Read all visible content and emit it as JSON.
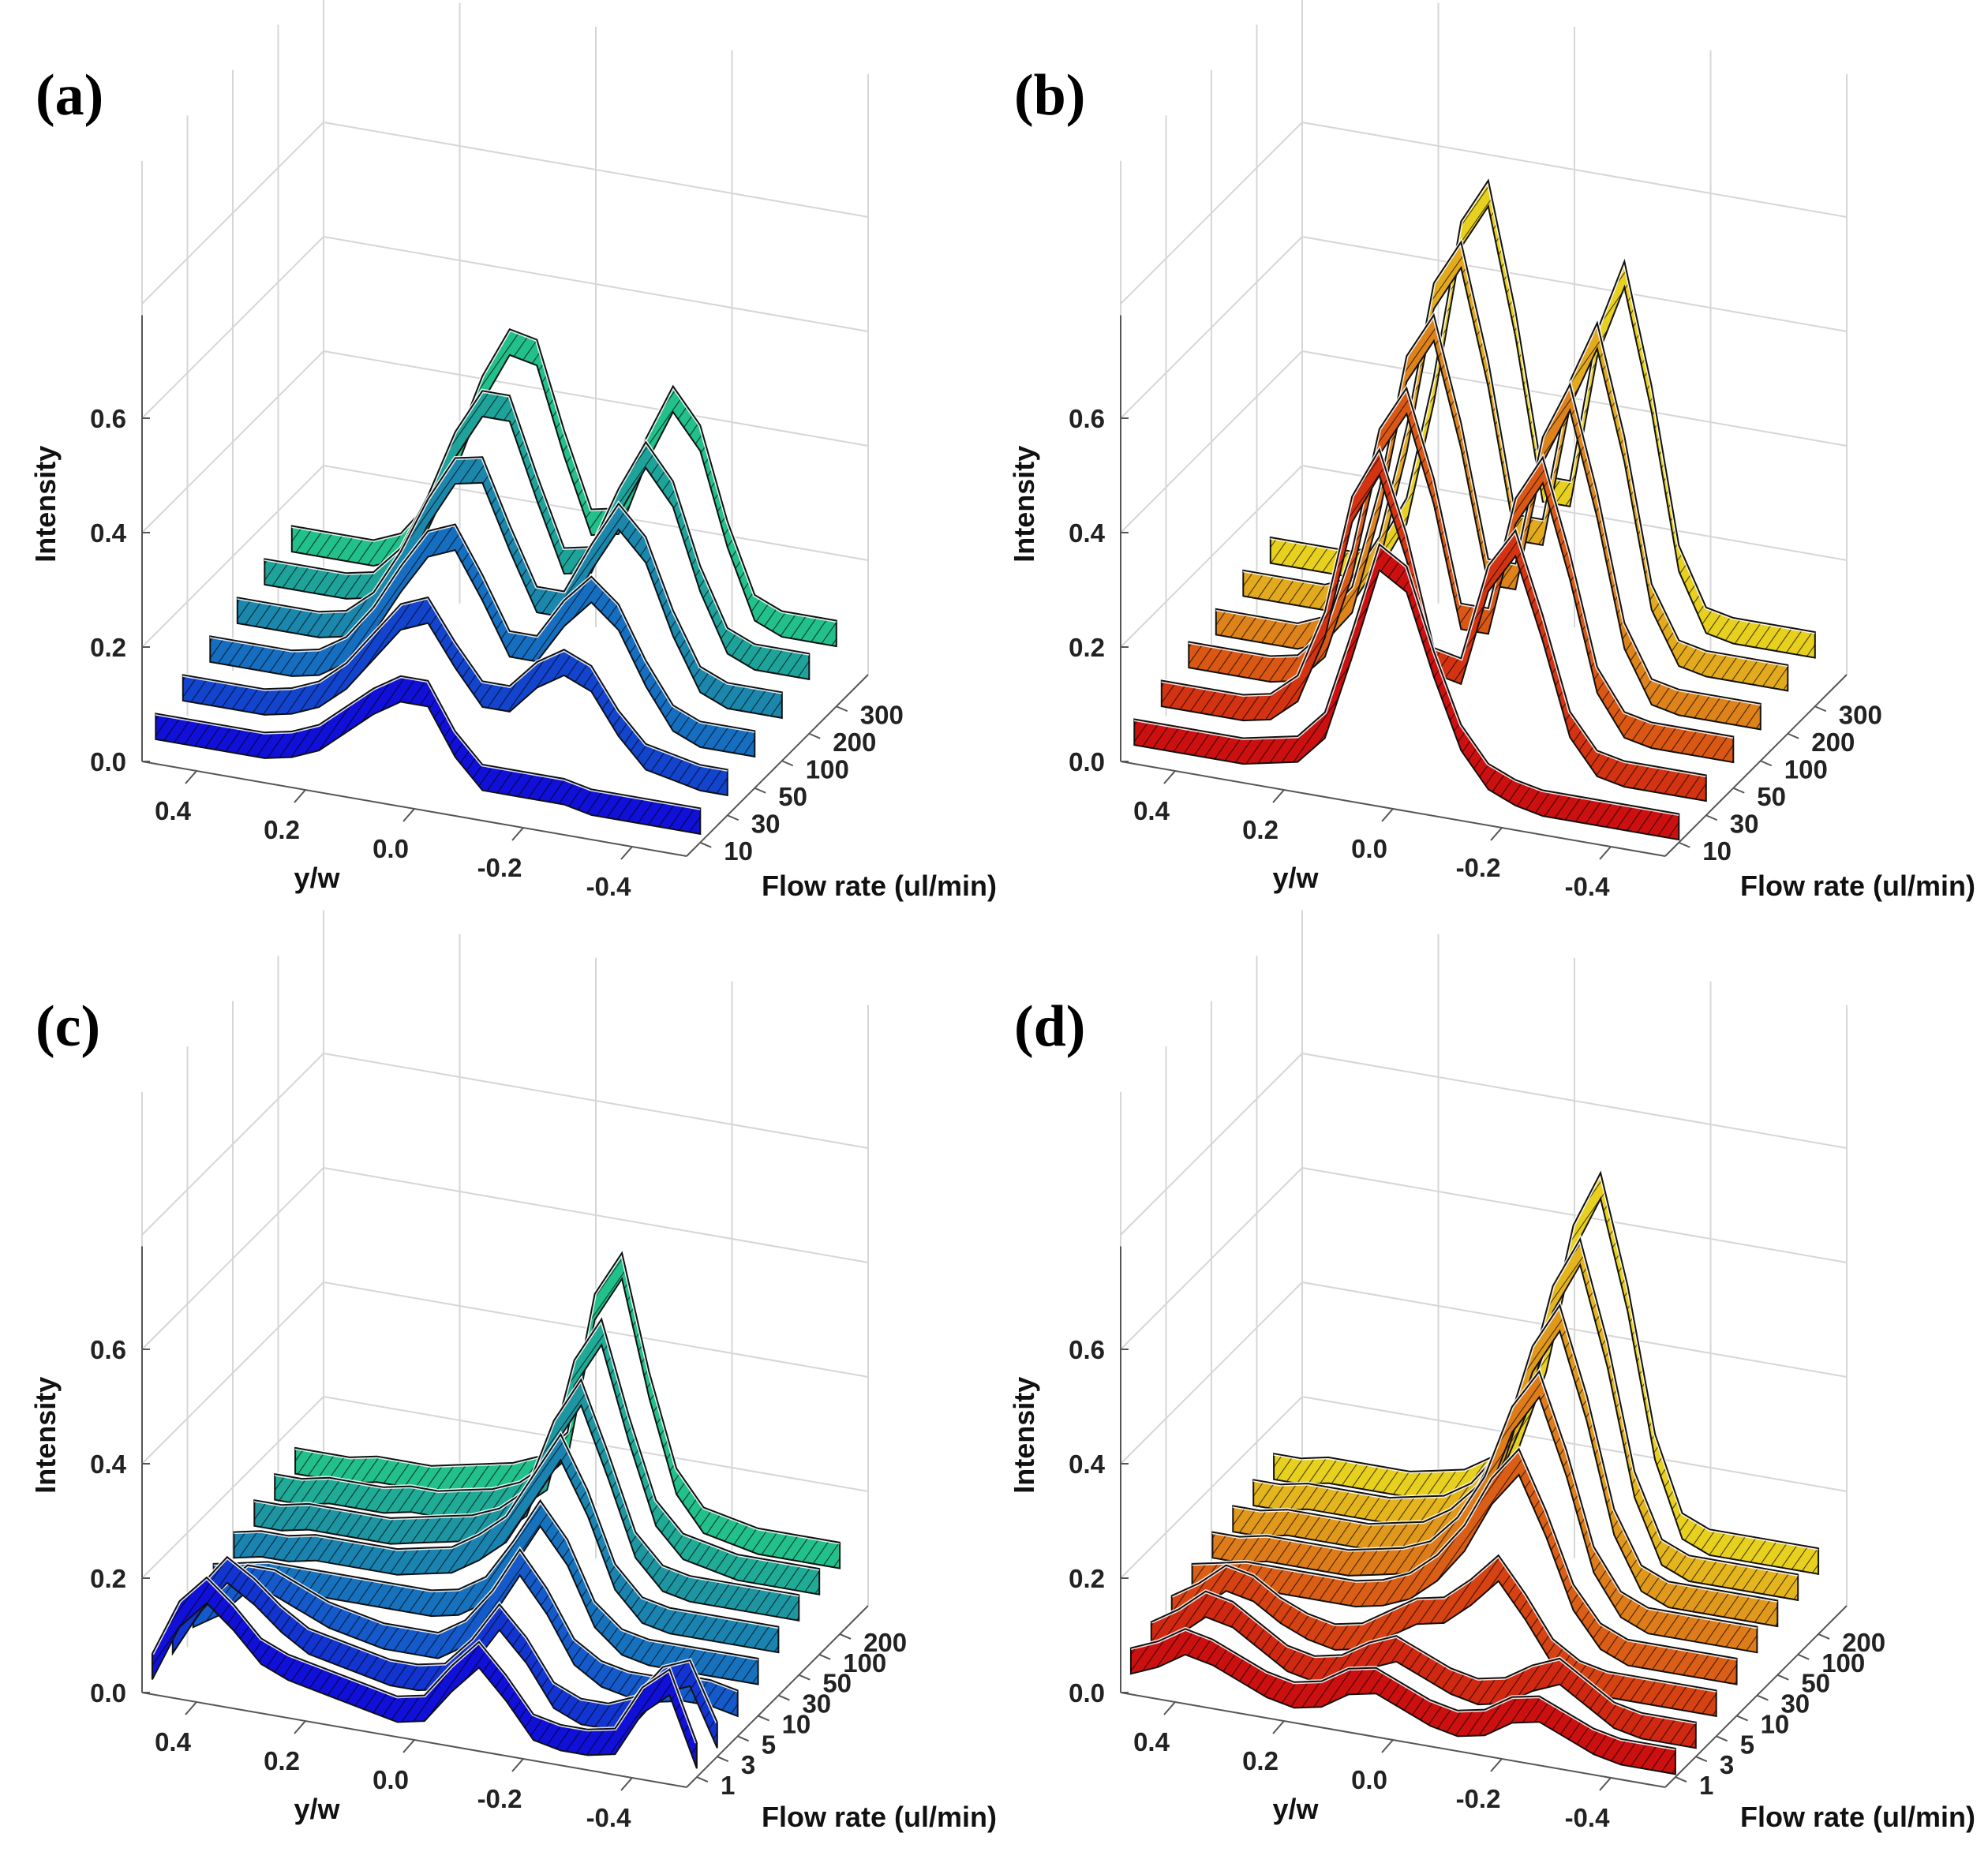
{
  "figure": {
    "panels": [
      "(a)",
      "(b)",
      "(c)",
      "(d)"
    ]
  },
  "chart_data": [
    {
      "panel": "(a)",
      "type": "ribbon3d",
      "colormap": "winter",
      "colors": [
        "#1010d8",
        "#1566c8",
        "#1c8fa5",
        "#22c08a"
      ],
      "zlabel": "Intensity",
      "xlabel": "y/w",
      "ylabel": "Flow rate (ul/min)",
      "z_ticks": [
        "0.0",
        "0.2",
        "0.4",
        "0.6"
      ],
      "x_ticks": [
        "0.4",
        "0.2",
        "0.0",
        "-0.2",
        "-0.4"
      ],
      "y_ticks": [
        "10",
        "30",
        "50",
        "100",
        "200",
        "300"
      ],
      "zlim": [
        0,
        0.8
      ],
      "xlim": [
        0.5,
        -0.5
      ],
      "x": [
        0.5,
        0.45,
        0.4,
        0.35,
        0.3,
        0.25,
        0.2,
        0.15,
        0.1,
        0.05,
        0.0,
        -0.05,
        -0.1,
        -0.15,
        -0.2,
        -0.25,
        -0.3,
        -0.35,
        -0.4,
        -0.45,
        -0.5
      ],
      "series": [
        {
          "name": "10",
          "values": [
            0.06,
            0.06,
            0.06,
            0.06,
            0.06,
            0.07,
            0.09,
            0.13,
            0.17,
            0.2,
            0.2,
            0.12,
            0.07,
            0.07,
            0.07,
            0.07,
            0.06,
            0.06,
            0.06,
            0.06,
            0.06
          ]
        },
        {
          "name": "30",
          "values": [
            0.08,
            0.08,
            0.08,
            0.08,
            0.09,
            0.11,
            0.15,
            0.21,
            0.27,
            0.29,
            0.22,
            0.16,
            0.16,
            0.21,
            0.24,
            0.22,
            0.15,
            0.1,
            0.09,
            0.08,
            0.08
          ]
        },
        {
          "name": "50",
          "values": [
            0.1,
            0.1,
            0.1,
            0.1,
            0.11,
            0.14,
            0.2,
            0.28,
            0.35,
            0.37,
            0.29,
            0.2,
            0.2,
            0.27,
            0.32,
            0.28,
            0.19,
            0.12,
            0.1,
            0.1,
            0.1
          ]
        },
        {
          "name": "100",
          "values": [
            0.12,
            0.12,
            0.12,
            0.12,
            0.13,
            0.17,
            0.25,
            0.35,
            0.43,
            0.44,
            0.33,
            0.23,
            0.23,
            0.32,
            0.4,
            0.35,
            0.23,
            0.14,
            0.12,
            0.12,
            0.12
          ]
        },
        {
          "name": "200",
          "values": [
            0.14,
            0.14,
            0.14,
            0.14,
            0.15,
            0.2,
            0.3,
            0.42,
            0.5,
            0.5,
            0.37,
            0.25,
            0.26,
            0.37,
            0.46,
            0.4,
            0.26,
            0.16,
            0.14,
            0.14,
            0.14
          ]
        },
        {
          "name": "300",
          "values": [
            0.15,
            0.15,
            0.15,
            0.15,
            0.17,
            0.23,
            0.34,
            0.47,
            0.56,
            0.55,
            0.4,
            0.27,
            0.28,
            0.41,
            0.51,
            0.45,
            0.29,
            0.17,
            0.15,
            0.15,
            0.15
          ]
        }
      ]
    },
    {
      "panel": "(b)",
      "type": "ribbon3d",
      "colormap": "autumn",
      "colors": [
        "#cc1010",
        "#d84a12",
        "#e0901c",
        "#e8d01e"
      ],
      "zlabel": "Intensity",
      "xlabel": "y/w",
      "ylabel": "Flow rate (ul/min)",
      "z_ticks": [
        "0.0",
        "0.2",
        "0.4",
        "0.6"
      ],
      "x_ticks": [
        "0.4",
        "0.2",
        "0.0",
        "-0.2",
        "-0.4"
      ],
      "y_ticks": [
        "10",
        "30",
        "50",
        "100",
        "200",
        "300"
      ],
      "zlim": [
        0,
        0.8
      ],
      "xlim": [
        0.5,
        -0.5
      ],
      "x": [
        0.5,
        0.45,
        0.4,
        0.35,
        0.3,
        0.25,
        0.2,
        0.15,
        0.1,
        0.05,
        0.0,
        -0.05,
        -0.1,
        -0.15,
        -0.2,
        -0.25,
        -0.3,
        -0.35,
        -0.4,
        -0.45,
        -0.5
      ],
      "series": [
        {
          "name": "10",
          "values": [
            0.05,
            0.05,
            0.05,
            0.05,
            0.05,
            0.06,
            0.07,
            0.12,
            0.27,
            0.43,
            0.4,
            0.26,
            0.14,
            0.08,
            0.06,
            0.05,
            0.05,
            0.05,
            0.05,
            0.05,
            0.05
          ]
        },
        {
          "name": "30",
          "values": [
            0.07,
            0.07,
            0.07,
            0.07,
            0.08,
            0.12,
            0.24,
            0.45,
            0.54,
            0.4,
            0.21,
            0.2,
            0.37,
            0.44,
            0.3,
            0.14,
            0.08,
            0.07,
            0.07,
            0.07,
            0.07
          ]
        },
        {
          "name": "50",
          "values": [
            0.09,
            0.09,
            0.09,
            0.09,
            0.1,
            0.15,
            0.3,
            0.52,
            0.6,
            0.45,
            0.24,
            0.24,
            0.44,
            0.52,
            0.36,
            0.17,
            0.1,
            0.09,
            0.09,
            0.09,
            0.09
          ]
        },
        {
          "name": "100",
          "values": [
            0.1,
            0.1,
            0.1,
            0.1,
            0.12,
            0.18,
            0.36,
            0.6,
            0.68,
            0.5,
            0.27,
            0.27,
            0.5,
            0.6,
            0.42,
            0.2,
            0.11,
            0.1,
            0.1,
            0.1,
            0.1
          ]
        },
        {
          "name": "200",
          "values": [
            0.12,
            0.12,
            0.12,
            0.12,
            0.14,
            0.22,
            0.42,
            0.68,
            0.76,
            0.56,
            0.3,
            0.3,
            0.55,
            0.66,
            0.47,
            0.22,
            0.13,
            0.12,
            0.12,
            0.12,
            0.12
          ]
        },
        {
          "name": "300",
          "values": [
            0.13,
            0.13,
            0.13,
            0.13,
            0.15,
            0.24,
            0.46,
            0.74,
            0.82,
            0.6,
            0.32,
            0.32,
            0.59,
            0.72,
            0.51,
            0.24,
            0.14,
            0.13,
            0.13,
            0.13,
            0.13
          ]
        }
      ]
    },
    {
      "panel": "(c)",
      "type": "ribbon3d",
      "colormap": "winter",
      "colors": [
        "#1010d8",
        "#1566c8",
        "#1c8fa5",
        "#22c08a"
      ],
      "zlabel": "Intensity",
      "xlabel": "y/w",
      "ylabel": "Flow rate (ul/min)",
      "z_ticks": [
        "0.0",
        "0.2",
        "0.4",
        "0.6"
      ],
      "x_ticks": [
        "0.4",
        "0.2",
        "0.0",
        "-0.2",
        "-0.4"
      ],
      "y_ticks": [
        "1",
        "3",
        "5",
        "10",
        "30",
        "50",
        "100",
        "200"
      ],
      "zlim": [
        0,
        0.8
      ],
      "xlim": [
        0.5,
        -0.5
      ],
      "x": [
        0.5,
        0.45,
        0.4,
        0.35,
        0.3,
        0.25,
        0.2,
        0.15,
        0.1,
        0.05,
        0.0,
        -0.05,
        -0.1,
        -0.15,
        -0.2,
        -0.25,
        -0.3,
        -0.35,
        -0.4,
        -0.45,
        -0.5
      ],
      "series": [
        {
          "name": "1",
          "values": [
            0.05,
            0.15,
            0.2,
            0.16,
            0.11,
            0.09,
            0.08,
            0.07,
            0.06,
            0.05,
            0.06,
            0.12,
            0.17,
            0.12,
            0.06,
            0.05,
            0.05,
            0.06,
            0.14,
            0.18,
            0.06
          ]
        },
        {
          "name": "3",
          "values": [
            0.06,
            0.14,
            0.2,
            0.17,
            0.13,
            0.1,
            0.09,
            0.08,
            0.07,
            0.07,
            0.08,
            0.13,
            0.2,
            0.15,
            0.08,
            0.06,
            0.06,
            0.08,
            0.14,
            0.16,
            0.06
          ]
        },
        {
          "name": "5",
          "values": [
            0.07,
            0.1,
            0.15,
            0.15,
            0.13,
            0.11,
            0.1,
            0.09,
            0.09,
            0.09,
            0.12,
            0.18,
            0.26,
            0.2,
            0.12,
            0.09,
            0.08,
            0.08,
            0.09,
            0.09,
            0.08
          ]
        },
        {
          "name": "10",
          "values": [
            0.1,
            0.11,
            0.12,
            0.12,
            0.12,
            0.12,
            0.12,
            0.12,
            0.12,
            0.13,
            0.16,
            0.23,
            0.31,
            0.25,
            0.15,
            0.11,
            0.1,
            0.1,
            0.1,
            0.1,
            0.1
          ]
        },
        {
          "name": "30",
          "values": [
            0.12,
            0.13,
            0.13,
            0.14,
            0.14,
            0.14,
            0.14,
            0.15,
            0.16,
            0.19,
            0.23,
            0.31,
            0.39,
            0.3,
            0.18,
            0.13,
            0.12,
            0.12,
            0.12,
            0.12,
            0.12
          ]
        },
        {
          "name": "50",
          "values": [
            0.14,
            0.14,
            0.15,
            0.15,
            0.15,
            0.15,
            0.16,
            0.17,
            0.18,
            0.2,
            0.24,
            0.37,
            0.45,
            0.33,
            0.2,
            0.15,
            0.14,
            0.14,
            0.14,
            0.14,
            0.14
          ]
        },
        {
          "name": "100",
          "values": [
            0.15,
            0.15,
            0.16,
            0.16,
            0.16,
            0.17,
            0.17,
            0.18,
            0.19,
            0.21,
            0.25,
            0.44,
            0.52,
            0.36,
            0.22,
            0.17,
            0.16,
            0.15,
            0.15,
            0.15,
            0.15
          ]
        },
        {
          "name": "200",
          "values": [
            0.16,
            0.16,
            0.16,
            0.17,
            0.17,
            0.17,
            0.18,
            0.19,
            0.2,
            0.22,
            0.27,
            0.52,
            0.6,
            0.4,
            0.24,
            0.18,
            0.17,
            0.16,
            0.16,
            0.16,
            0.16
          ]
        }
      ]
    },
    {
      "panel": "(d)",
      "type": "ribbon3d",
      "colormap": "autumn",
      "colors": [
        "#cc1010",
        "#d84a12",
        "#e0901c",
        "#e8d01e"
      ],
      "zlabel": "Intensity",
      "xlabel": "y/w",
      "ylabel": "Flow rate (ul/min)",
      "z_ticks": [
        "0.0",
        "0.2",
        "0.4",
        "0.6"
      ],
      "x_ticks": [
        "0.4",
        "0.2",
        "0.0",
        "-0.2",
        "-0.4"
      ],
      "y_ticks": [
        "1",
        "3",
        "5",
        "10",
        "30",
        "50",
        "100",
        "200"
      ],
      "zlim": [
        0,
        0.8
      ],
      "xlim": [
        0.5,
        -0.5
      ],
      "x": [
        0.5,
        0.45,
        0.4,
        0.35,
        0.3,
        0.25,
        0.2,
        0.15,
        0.1,
        0.05,
        0.0,
        -0.05,
        -0.1,
        -0.15,
        -0.2,
        -0.25,
        -0.3,
        -0.35,
        -0.4,
        -0.45,
        -0.5
      ],
      "series": [
        {
          "name": "1",
          "values": [
            0.06,
            0.08,
            0.11,
            0.1,
            0.08,
            0.06,
            0.05,
            0.06,
            0.09,
            0.1,
            0.08,
            0.06,
            0.05,
            0.06,
            0.09,
            0.1,
            0.08,
            0.06,
            0.05,
            0.05,
            0.05
          ]
        },
        {
          "name": "3",
          "values": [
            0.07,
            0.1,
            0.14,
            0.13,
            0.1,
            0.07,
            0.06,
            0.07,
            0.1,
            0.12,
            0.1,
            0.08,
            0.07,
            0.08,
            0.11,
            0.13,
            0.1,
            0.07,
            0.06,
            0.06,
            0.06
          ]
        },
        {
          "name": "5",
          "values": [
            0.08,
            0.11,
            0.15,
            0.14,
            0.11,
            0.09,
            0.08,
            0.09,
            0.12,
            0.15,
            0.16,
            0.2,
            0.25,
            0.19,
            0.12,
            0.09,
            0.08,
            0.08,
            0.08,
            0.08,
            0.08
          ]
        },
        {
          "name": "10",
          "values": [
            0.1,
            0.11,
            0.12,
            0.12,
            0.12,
            0.12,
            0.12,
            0.13,
            0.15,
            0.19,
            0.25,
            0.34,
            0.4,
            0.3,
            0.18,
            0.12,
            0.1,
            0.1,
            0.1,
            0.1,
            0.1
          ]
        },
        {
          "name": "30",
          "values": [
            0.12,
            0.12,
            0.13,
            0.13,
            0.13,
            0.13,
            0.14,
            0.15,
            0.17,
            0.22,
            0.3,
            0.43,
            0.5,
            0.37,
            0.21,
            0.14,
            0.12,
            0.12,
            0.12,
            0.12,
            0.12
          ]
        },
        {
          "name": "50",
          "values": [
            0.13,
            0.13,
            0.14,
            0.14,
            0.14,
            0.14,
            0.15,
            0.16,
            0.19,
            0.24,
            0.34,
            0.5,
            0.58,
            0.43,
            0.24,
            0.15,
            0.13,
            0.13,
            0.13,
            0.13,
            0.13
          ]
        },
        {
          "name": "100",
          "values": [
            0.14,
            0.14,
            0.15,
            0.15,
            0.15,
            0.15,
            0.16,
            0.17,
            0.2,
            0.26,
            0.38,
            0.57,
            0.66,
            0.49,
            0.27,
            0.16,
            0.14,
            0.14,
            0.14,
            0.14,
            0.14
          ]
        },
        {
          "name": "200",
          "values": [
            0.15,
            0.15,
            0.16,
            0.16,
            0.16,
            0.16,
            0.17,
            0.18,
            0.21,
            0.28,
            0.42,
            0.64,
            0.74,
            0.55,
            0.3,
            0.17,
            0.15,
            0.15,
            0.15,
            0.15,
            0.15
          ]
        }
      ]
    }
  ]
}
